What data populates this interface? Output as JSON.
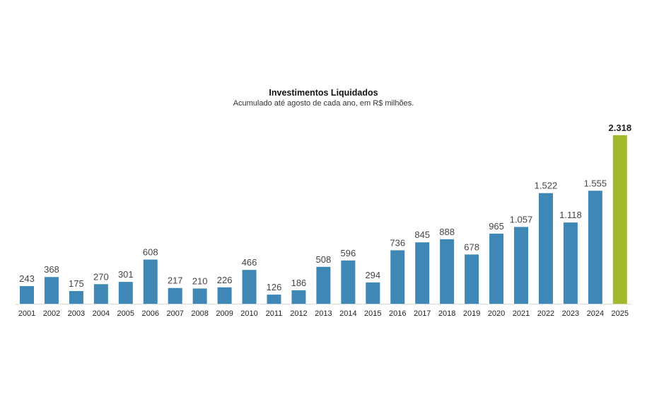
{
  "chart_data": {
    "type": "bar",
    "title": "Investimentos Liquidados",
    "subtitle": "Acumulado até agosto de cada ano, em R$ milhões.",
    "categories": [
      "2001",
      "2002",
      "2003",
      "2004",
      "2005",
      "2006",
      "2007",
      "2008",
      "2009",
      "2010",
      "2011",
      "2012",
      "2013",
      "2014",
      "2015",
      "2016",
      "2017",
      "2018",
      "2019",
      "2020",
      "2021",
      "2022",
      "2023",
      "2024",
      "2025"
    ],
    "values": [
      243,
      368,
      175,
      270,
      301,
      608,
      217,
      210,
      226,
      466,
      126,
      186,
      508,
      596,
      294,
      736,
      845,
      888,
      678,
      965,
      1057,
      1522,
      1118,
      1555,
      2318
    ],
    "labels": [
      "243",
      "368",
      "175",
      "270",
      "301",
      "608",
      "217",
      "210",
      "226",
      "466",
      "126",
      "186",
      "508",
      "596",
      "294",
      "736",
      "845",
      "888",
      "678",
      "965",
      "1.057",
      "1.522",
      "1.118",
      "1.555",
      "2.318"
    ],
    "ylim": [
      0,
      2318
    ],
    "grid": false,
    "colors": {
      "default": "#3f88b5",
      "highlight": "#a3b82a",
      "highlight_index": 24
    }
  }
}
